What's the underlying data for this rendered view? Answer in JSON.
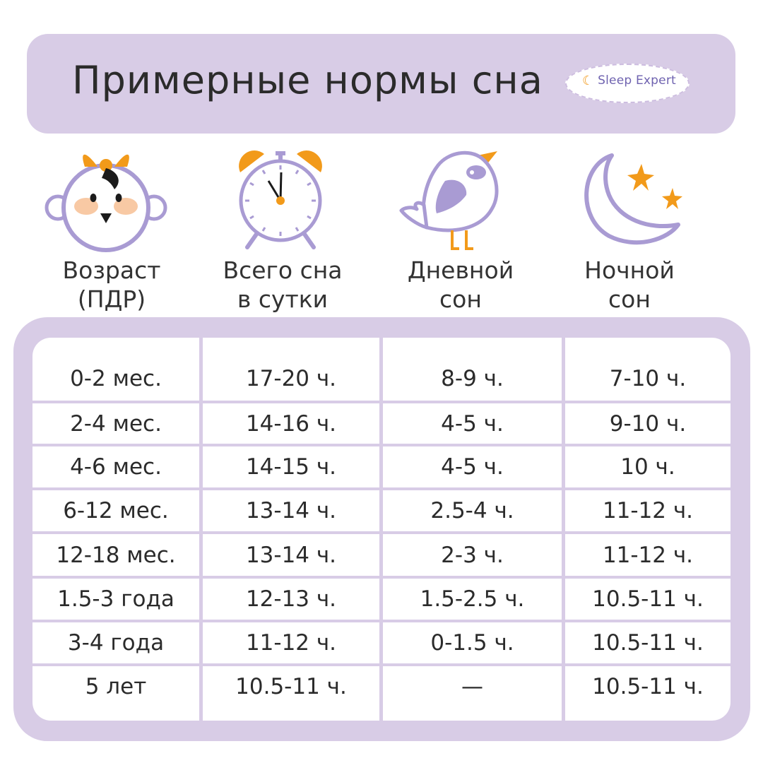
{
  "title": "Примерные нормы сна",
  "logo": {
    "text": "Sleep Expert",
    "icon": "crescent-moon-icon"
  },
  "colors": {
    "lavender": "#d8cce6",
    "purple": "#a99bd3",
    "orange": "#f29a1a",
    "peach": "#f8c9a4",
    "text": "#2b2b2b"
  },
  "columns": [
    {
      "icon": "baby-face-icon",
      "line1": "Возраст",
      "line2": "(ПДР)"
    },
    {
      "icon": "alarm-clock-icon",
      "line1": "Всего сна",
      "line2": "в сутки"
    },
    {
      "icon": "bird-icon",
      "line1": "Дневной",
      "line2": "сон"
    },
    {
      "icon": "moon-stars-icon",
      "line1": "Ночной",
      "line2": "сон"
    }
  ],
  "rows": [
    {
      "age": "0-2 мес.",
      "total": "17-20 ч.",
      "day": "8-9 ч.",
      "night": "7-10 ч."
    },
    {
      "age": "2-4 мес.",
      "total": "14-16 ч.",
      "day": "4-5 ч.",
      "night": "9-10 ч."
    },
    {
      "age": "4-6 мес.",
      "total": "14-15 ч.",
      "day": "4-5 ч.",
      "night": "10 ч."
    },
    {
      "age": "6-12 мес.",
      "total": "13-14 ч.",
      "day": "2.5-4 ч.",
      "night": "11-12 ч."
    },
    {
      "age": "12-18 мес.",
      "total": "13-14 ч.",
      "day": "2-3 ч.",
      "night": "11-12 ч."
    },
    {
      "age": "1.5-3 года",
      "total": "12-13 ч.",
      "day": "1.5-2.5 ч.",
      "night": "10.5-11 ч."
    },
    {
      "age": "3-4 года",
      "total": "11-12 ч.",
      "day": "0-1.5 ч.",
      "night": "10.5-11 ч."
    },
    {
      "age": "5 лет",
      "total": "10.5-11 ч.",
      "day": "—",
      "night": "10.5-11 ч."
    }
  ]
}
